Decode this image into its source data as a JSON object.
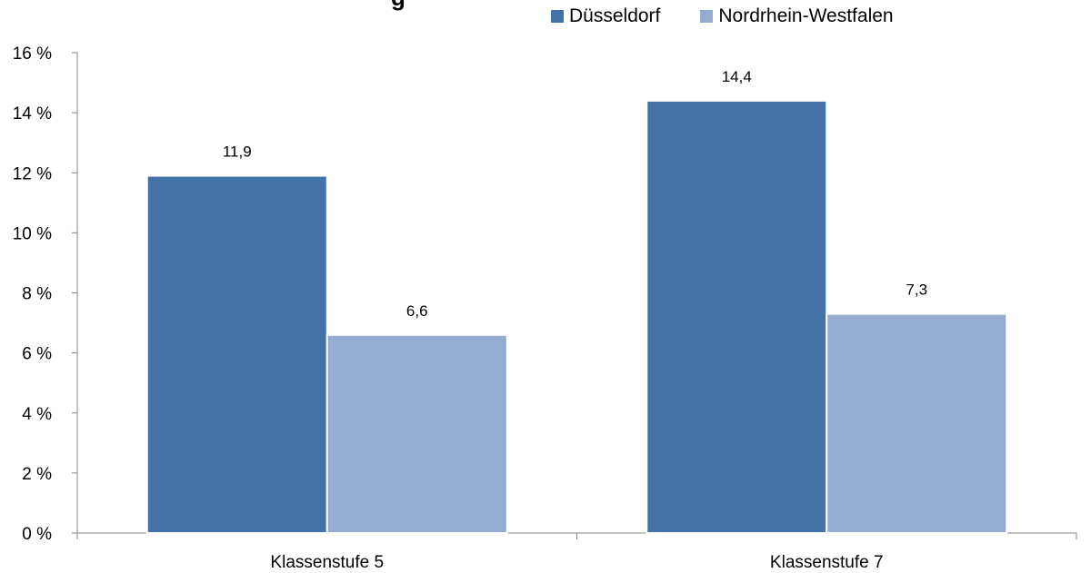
{
  "chart_data": {
    "type": "bar",
    "title_fragment": "g",
    "categories": [
      "Klassenstufe 5",
      "Klassenstufe 7"
    ],
    "series": [
      {
        "name": "Düsseldorf",
        "values": [
          11.9,
          14.4
        ],
        "color": "#4472A7",
        "labels": [
          "11,9",
          "14,4"
        ]
      },
      {
        "name": "Nordrhein-Westfalen",
        "values": [
          6.6,
          7.3
        ],
        "color": "#95ABD1",
        "labels": [
          "6,6",
          "7,3"
        ]
      }
    ],
    "ylim": [
      0,
      16
    ],
    "yticks": [
      0,
      2,
      4,
      6,
      8,
      10,
      12,
      14,
      16
    ],
    "ytick_labels": [
      "0 %",
      "2 %",
      "4 %",
      "6 %",
      "8 %",
      "10 %",
      "12 %",
      "14 %",
      "16 %"
    ],
    "legend_position": "top-right",
    "grid": false
  }
}
